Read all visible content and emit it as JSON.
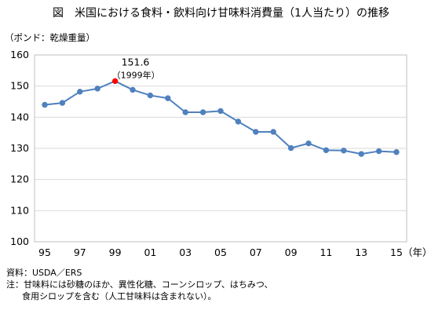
{
  "title": "図　米国における食料・飲料向け甘味料消費量（1人当たり）の推移",
  "unit_label": "（ポンド：乾燥重量）",
  "chart_data": {
    "type": "line",
    "x": [
      1995,
      1996,
      1997,
      1998,
      1999,
      2000,
      2001,
      2002,
      2003,
      2004,
      2005,
      2006,
      2007,
      2008,
      2009,
      2010,
      2011,
      2012,
      2013,
      2014,
      2015
    ],
    "series": [
      {
        "values": [
          144.0,
          144.6,
          148.2,
          149.2,
          151.6,
          148.8,
          147.0,
          146.1,
          141.6,
          141.6,
          142.0,
          138.6,
          135.3,
          135.3,
          130.1,
          131.6,
          129.4,
          129.3,
          128.2,
          129.1,
          128.8
        ],
        "color": "#4f81bd"
      }
    ],
    "highlight": {
      "index": 4,
      "value_label": "151.6",
      "year_label": "（1999年）",
      "color": "#ff0000"
    },
    "xtick_labels": [
      "95",
      "97",
      "99",
      "01",
      "03",
      "05",
      "07",
      "09",
      "11",
      "13",
      "15"
    ],
    "xtick_years": [
      1995,
      1997,
      1999,
      2001,
      2003,
      2005,
      2007,
      2009,
      2011,
      2013,
      2015
    ],
    "x_unit_label": "（年）",
    "ylim": [
      100,
      160
    ],
    "yticks": [
      100,
      110,
      120,
      130,
      140,
      150,
      160
    ],
    "grid": true,
    "grid_color": "#d9d9d9"
  },
  "notes": {
    "source": "資料：USDA／ERS",
    "note_line1": "注：甘味料には砂糖のほか、異性化糖、コーンシロップ、はちみつ、",
    "note_line2": "食用シロップを含む（人工甘味料は含まれない）。"
  }
}
